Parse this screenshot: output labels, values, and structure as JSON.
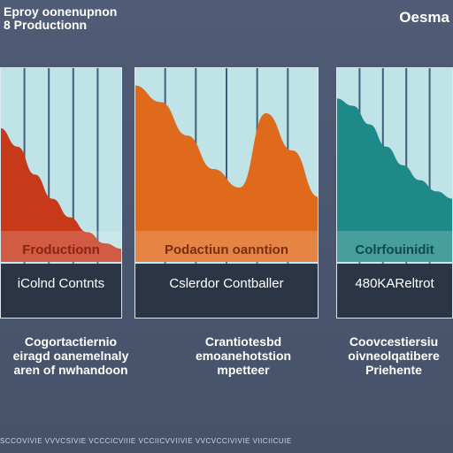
{
  "header": {
    "title_lines": [
      "Eproy oonenupnon",
      "8 Productionn"
    ],
    "brand": "Oesma"
  },
  "chart_data": [
    {
      "type": "area",
      "title": "",
      "xlabel": "",
      "ylabel": "",
      "x": [
        0,
        1,
        2,
        3,
        4,
        5,
        6,
        7
      ],
      "ylim": [
        0,
        1
      ],
      "series": [
        {
          "values": [
            0.72,
            0.62,
            0.47,
            0.34,
            0.24,
            0.16,
            0.1,
            0.07
          ]
        }
      ],
      "color": "#c8391a",
      "top_label": "Froductionn",
      "bottom_label": "iColnd Contnts",
      "caption": "Cogortactiernio\neiragd oanemelnaly\naren of nwhandoon"
    },
    {
      "type": "area",
      "title": "",
      "xlabel": "",
      "ylabel": "",
      "x": [
        0,
        1,
        2,
        3,
        4,
        5,
        6,
        7
      ],
      "ylim": [
        0,
        1
      ],
      "series": [
        {
          "values": [
            0.95,
            0.86,
            0.68,
            0.5,
            0.4,
            0.8,
            0.6,
            0.35
          ]
        }
      ],
      "color": "#e06a1c",
      "top_label": "Podactiun oanntion",
      "bottom_label": "Cslerdor Contballer",
      "caption": "Crantiotesbd\nemoanehotstion\nmpetteer"
    },
    {
      "type": "area",
      "title": "",
      "xlabel": "",
      "ylabel": "",
      "x": [
        0,
        1,
        2,
        3,
        4,
        5,
        6,
        7
      ],
      "ylim": [
        0,
        1
      ],
      "series": [
        {
          "values": [
            0.88,
            0.84,
            0.74,
            0.62,
            0.52,
            0.44,
            0.38,
            0.34
          ]
        }
      ],
      "color": "#1e8a88",
      "top_label": "Colrfouinidit",
      "bottom_label": "480KAReltrot",
      "caption": "Coovcestiersiu\noivneolqatibere\nPriehente"
    }
  ],
  "footer": {
    "text": "SCCOVIVIE VVVCSIVIE VCCCICVIIIE VCCIICVVIIVIE VVCVCCIVIVIE VIICIICUIE"
  }
}
